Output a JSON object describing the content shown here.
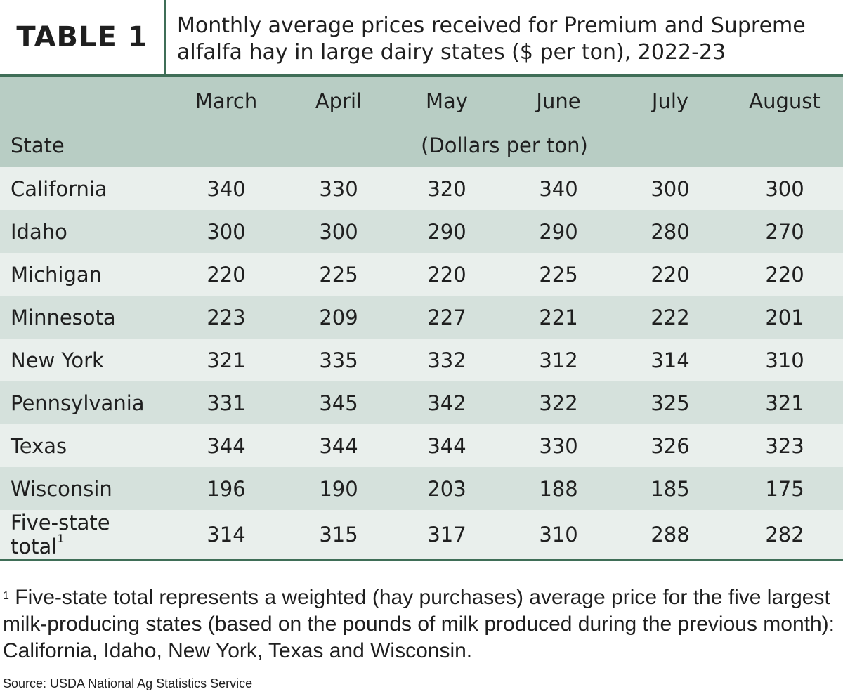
{
  "header": {
    "label": "TABLE 1",
    "title": "Monthly average prices received for Premium and Supreme alfalfa hay in large dairy states ($ per ton), 2022-23"
  },
  "table": {
    "columns": [
      "March",
      "April",
      "May",
      "June",
      "July",
      "August"
    ],
    "state_header": "State",
    "unit_header": "(Dollars per ton)",
    "rows": [
      {
        "state": "California",
        "sup": "",
        "values": [
          "340",
          "330",
          "320",
          "340",
          "300",
          "300"
        ]
      },
      {
        "state": "Idaho",
        "sup": "",
        "values": [
          "300",
          "300",
          "290",
          "290",
          "280",
          "270"
        ]
      },
      {
        "state": "Michigan",
        "sup": "",
        "values": [
          "220",
          "225",
          "220",
          "225",
          "220",
          "220"
        ]
      },
      {
        "state": "Minnesota",
        "sup": "",
        "values": [
          "223",
          "209",
          "227",
          "221",
          "222",
          "201"
        ]
      },
      {
        "state": "New York",
        "sup": "",
        "values": [
          "321",
          "335",
          "332",
          "312",
          "314",
          "310"
        ]
      },
      {
        "state": "Pennsylvania",
        "sup": "",
        "values": [
          "331",
          "345",
          "342",
          "322",
          "325",
          "321"
        ]
      },
      {
        "state": "Texas",
        "sup": "",
        "values": [
          "344",
          "344",
          "344",
          "330",
          "326",
          "323"
        ]
      },
      {
        "state": "Wisconsin",
        "sup": "",
        "values": [
          "196",
          "190",
          "203",
          "188",
          "185",
          "175"
        ]
      },
      {
        "state": "Five-state total",
        "sup": "1",
        "values": [
          "314",
          "315",
          "317",
          "310",
          "288",
          "282"
        ]
      }
    ]
  },
  "footnote": {
    "marker": "1",
    "text": " Five-state total represents a weighted (hay purchases) average price for the five largest milk-producing states (based on the pounds of milk produced during the previous month): California, Idaho, New York, Texas and Wisconsin."
  },
  "source": "Source: USDA National Ag Statistics Service",
  "colors": {
    "header_row": "#b8cdc4",
    "row_light": "#e9efec",
    "row_dark": "#d5e1dc",
    "rule": "#3f6e57"
  }
}
